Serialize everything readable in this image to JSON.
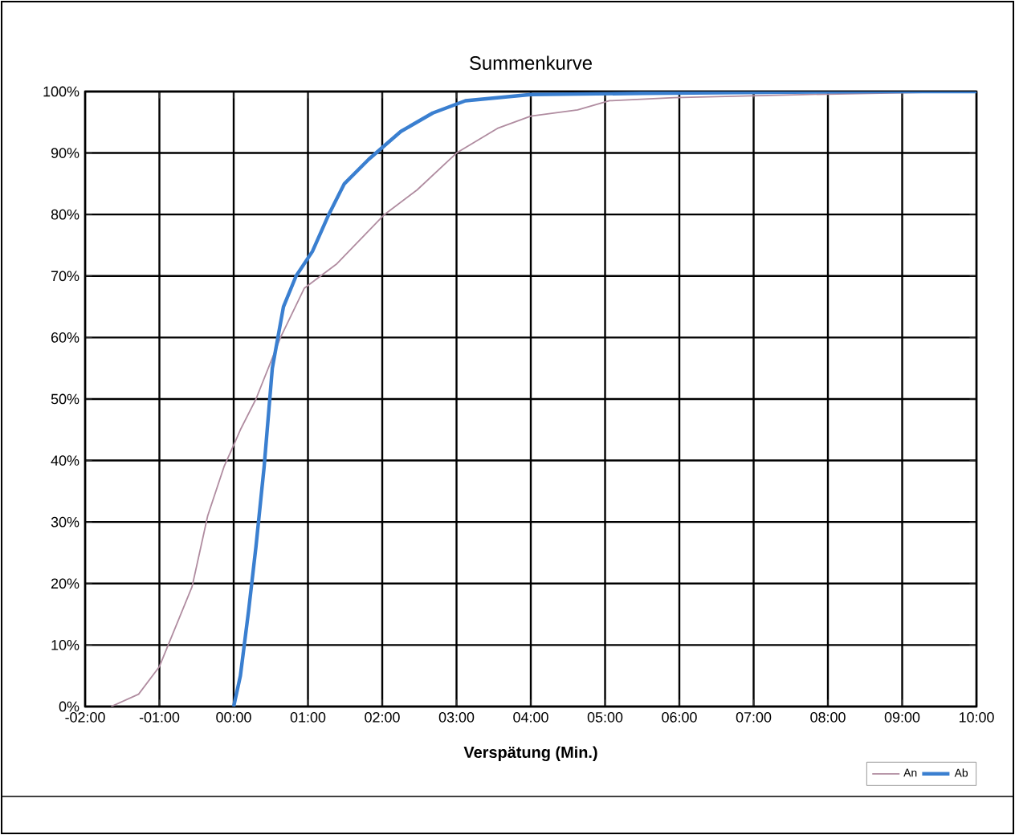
{
  "chart_data": {
    "type": "line",
    "title": "Summenkurve",
    "xlabel": "Verspätung (Min.)",
    "xlim": [
      -2,
      10
    ],
    "ylim": [
      0,
      100
    ],
    "xticks": [
      {
        "value": -2,
        "label": "-02:00"
      },
      {
        "value": -1,
        "label": "-01:00"
      },
      {
        "value": 0,
        "label": "00:00"
      },
      {
        "value": 1,
        "label": "01:00"
      },
      {
        "value": 2,
        "label": "02:00"
      },
      {
        "value": 3,
        "label": "03:00"
      },
      {
        "value": 4,
        "label": "04:00"
      },
      {
        "value": 5,
        "label": "05:00"
      },
      {
        "value": 6,
        "label": "06:00"
      },
      {
        "value": 7,
        "label": "07:00"
      },
      {
        "value": 8,
        "label": "08:00"
      },
      {
        "value": 9,
        "label": "09:00"
      },
      {
        "value": 10,
        "label": "10:00"
      }
    ],
    "yticks": [
      {
        "value": 0,
        "label": "0%"
      },
      {
        "value": 10,
        "label": "10%"
      },
      {
        "value": 20,
        "label": "20%"
      },
      {
        "value": 30,
        "label": "30%"
      },
      {
        "value": 40,
        "label": "40%"
      },
      {
        "value": 50,
        "label": "50%"
      },
      {
        "value": 60,
        "label": "60%"
      },
      {
        "value": 70,
        "label": "70%"
      },
      {
        "value": 80,
        "label": "80%"
      },
      {
        "value": 90,
        "label": "90%"
      },
      {
        "value": 100,
        "label": "100%"
      }
    ],
    "grid": true,
    "legend": "bottom right",
    "marker": "none",
    "series": [
      {
        "name": "An",
        "color": "#b08ca0",
        "x": [
          -1.65,
          -1.28,
          -1.0,
          -0.56,
          -0.35,
          -0.13,
          0,
          0.09,
          0.3,
          0.63,
          0.95,
          1.39,
          2.03,
          2.47,
          3.0,
          3.55,
          4.0,
          4.63,
          5.06,
          5.93,
          7.66,
          10
        ],
        "values": [
          0,
          2,
          6.5,
          19.5,
          31,
          39,
          42.5,
          45,
          50,
          60,
          68,
          72,
          80,
          84,
          90,
          94,
          96,
          97,
          98.5,
          99,
          99.5,
          100
        ]
      },
      {
        "name": "Ab",
        "color": "#3a7fd0",
        "x": [
          0,
          0.09,
          0.2,
          0.3,
          0.41,
          0.52,
          0.67,
          0.84,
          1.06,
          1.28,
          1.49,
          1.82,
          2.25,
          2.68,
          3.12,
          4.0,
          5.5,
          8.75,
          10
        ],
        "values": [
          0,
          5,
          15.5,
          26,
          39,
          55,
          65,
          70,
          74,
          80,
          85,
          89,
          93.5,
          96.5,
          98.5,
          99.5,
          99.7,
          100,
          100
        ]
      }
    ]
  }
}
